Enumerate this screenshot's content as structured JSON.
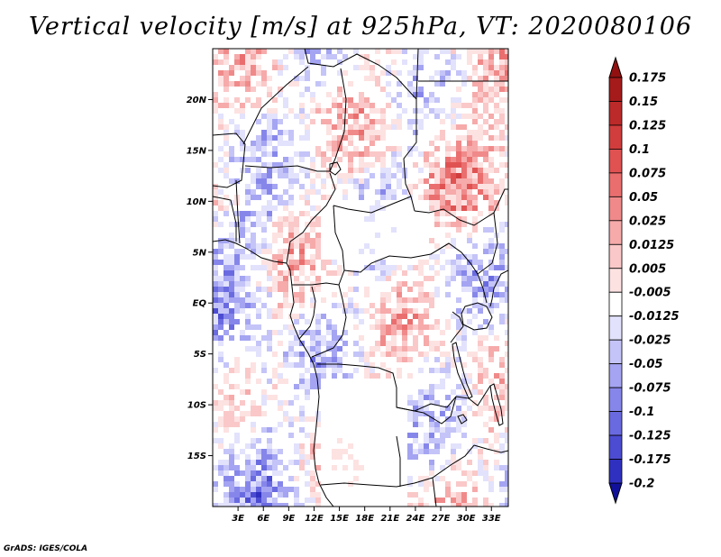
{
  "title": "Vertical velocity [m/s] at 925hPa, VT: 2020080106",
  "credit": "GrADS: IGES/COLA",
  "map": {
    "lon_range": [
      0,
      35
    ],
    "lat_range": [
      -20,
      25
    ],
    "lat_ticks": [
      {
        "value": 20,
        "label": "20N"
      },
      {
        "value": 15,
        "label": "15N"
      },
      {
        "value": 10,
        "label": "10N"
      },
      {
        "value": 5,
        "label": "5N"
      },
      {
        "value": 0,
        "label": "EQ"
      },
      {
        "value": -5,
        "label": "5S"
      },
      {
        "value": -10,
        "label": "10S"
      },
      {
        "value": -15,
        "label": "15S"
      }
    ],
    "lon_ticks": [
      {
        "value": 3,
        "label": "3E"
      },
      {
        "value": 6,
        "label": "6E"
      },
      {
        "value": 9,
        "label": "9E"
      },
      {
        "value": 12,
        "label": "12E"
      },
      {
        "value": 15,
        "label": "15E"
      },
      {
        "value": 18,
        "label": "18E"
      },
      {
        "value": 21,
        "label": "21E"
      },
      {
        "value": 24,
        "label": "24E"
      },
      {
        "value": 27,
        "label": "27E"
      },
      {
        "value": 30,
        "label": "30E"
      },
      {
        "value": 33,
        "label": "33E"
      }
    ]
  },
  "colorbar": {
    "levels": [
      {
        "label": "0.175",
        "color": "#a51b1b"
      },
      {
        "label": "0.15",
        "color": "#bd2a2a"
      },
      {
        "label": "0.125",
        "color": "#d13d3d"
      },
      {
        "label": "0.1",
        "color": "#e05252"
      },
      {
        "label": "0.075",
        "color": "#ea6e6e"
      },
      {
        "label": "0.05",
        "color": "#f08a8a"
      },
      {
        "label": "0.025",
        "color": "#f6aaaa"
      },
      {
        "label": "0.0125",
        "color": "#fac8c8"
      },
      {
        "label": "0.005",
        "color": "#fde2e2"
      },
      {
        "label": "-0.005",
        "color": "#ffffff"
      },
      {
        "label": "-0.0125",
        "color": "#e2e2fc"
      },
      {
        "label": "-0.025",
        "color": "#c4c4f8"
      },
      {
        "label": "-0.05",
        "color": "#a4a4f2"
      },
      {
        "label": "-0.075",
        "color": "#8686ea"
      },
      {
        "label": "-0.1",
        "color": "#6a6ae0"
      },
      {
        "label": "-0.125",
        "color": "#4c4cd2"
      },
      {
        "label": "-0.175",
        "color": "#3030c0"
      },
      {
        "label": "-0.2",
        "color": "#1a1aa6"
      }
    ],
    "top_arrow_color": "#931010",
    "bottom_arrow_color": "#10109a"
  }
}
